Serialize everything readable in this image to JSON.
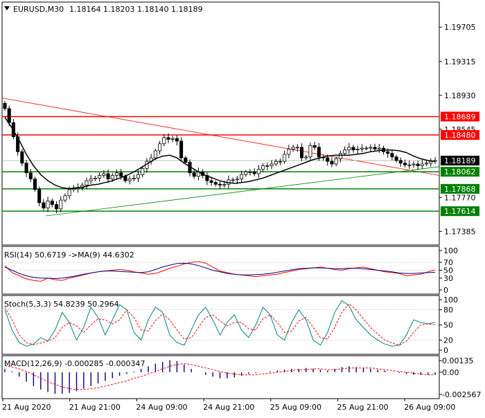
{
  "header": {
    "symbol": "EURUSD,M30",
    "ohlc": "1.18164 1.18203 1.18140 1.18189"
  },
  "colors": {
    "background": "#ffffff",
    "frame": "#000000",
    "grid": "#c8c8c8",
    "resistance": "#ff0000",
    "support": "#008000",
    "price_tag_bg": "#000000",
    "ma_line": "#000000",
    "candle": "#000000",
    "rsi_line": "#ff0000",
    "rsi_signal": "#000080",
    "stoch_main": "#008080",
    "stoch_signal": "#ff0000",
    "macd_hist": "#000080",
    "macd_signal": "#ff0000"
  },
  "chart_data": [
    {
      "type": "candlestick",
      "panel": "price",
      "title": "EURUSD,M30",
      "ylim": [
        1.1723,
        1.1999
      ],
      "y_ticks": [
        "1.19705",
        "1.19315",
        "1.18930",
        "1.18545",
        "1.17770",
        "1.17385"
      ],
      "x_ticks": [
        "21 Aug 2020",
        "21 Aug 21:00",
        "24 Aug 09:00",
        "24 Aug 21:00",
        "25 Aug 09:00",
        "25 Aug 21:00",
        "26 Aug 09:00"
      ],
      "current_price": "1.18189",
      "resistance_levels": [
        "1.18689",
        "1.18480"
      ],
      "support_levels": [
        "1.18062",
        "1.17868",
        "1.17614"
      ],
      "series": [
        {
          "name": "close",
          "values": [
            1.1878,
            1.1862,
            1.1846,
            1.1829,
            1.1816,
            1.1805,
            1.1798,
            1.1786,
            1.1771,
            1.1765,
            1.1773,
            1.1769,
            1.1764,
            1.1774,
            1.1779,
            1.1786,
            1.1787,
            1.1788,
            1.1791,
            1.1796,
            1.1798,
            1.1799,
            1.1802,
            1.1804,
            1.1798,
            1.1802,
            1.1805,
            1.1801,
            1.1796,
            1.1798,
            1.1799,
            1.1803,
            1.181,
            1.1818,
            1.1822,
            1.183,
            1.1838,
            1.1845,
            1.1843,
            1.1844,
            1.1841,
            1.1822,
            1.1817,
            1.1805,
            1.1801,
            1.1806,
            1.1802,
            1.1796,
            1.1794,
            1.1792,
            1.1791,
            1.1792,
            1.1797,
            1.1797,
            1.1798,
            1.1803,
            1.1806,
            1.1806,
            1.1804,
            1.1809,
            1.1813,
            1.1813,
            1.1815,
            1.1818,
            1.1818,
            1.1826,
            1.1832,
            1.1834,
            1.1834,
            1.1822,
            1.1823,
            1.1836,
            1.1834,
            1.1823,
            1.1822,
            1.1818,
            1.1815,
            1.1821,
            1.1827,
            1.1831,
            1.1834,
            1.1831,
            1.1832,
            1.1833,
            1.1833,
            1.1834,
            1.1832,
            1.1833,
            1.1829,
            1.1827,
            1.1823,
            1.1819,
            1.1816,
            1.1814,
            1.1814,
            1.1815,
            1.1813,
            1.1815,
            1.1816,
            1.1818,
            1.1819
          ]
        },
        {
          "name": "moving average",
          "values": [
            1.1868,
            1.1856,
            1.1842,
            1.1826,
            1.1813,
            1.1803,
            1.1796,
            1.1791,
            1.1788,
            1.1787,
            1.1788,
            1.1789,
            1.1791,
            1.1792,
            1.1794,
            1.1796,
            1.1799,
            1.1802,
            1.1806,
            1.1811,
            1.1816,
            1.1821,
            1.1824,
            1.1825,
            1.1822,
            1.1816,
            1.1811,
            1.1806,
            1.1802,
            1.1799,
            1.1796,
            1.1794,
            1.1793,
            1.1794,
            1.1795,
            1.1797,
            1.1799,
            1.1802,
            1.1805,
            1.1808,
            1.1811,
            1.1814,
            1.1817,
            1.182,
            1.1822,
            1.1824,
            1.1825,
            1.1825,
            1.1825,
            1.1826,
            1.1827,
            1.1829,
            1.183,
            1.1831,
            1.1831,
            1.183,
            1.1828,
            1.1824,
            1.1821,
            1.1819,
            1.1818
          ]
        }
      ]
    },
    {
      "type": "line",
      "panel": "rsi",
      "title": "RSI(14) 50.6719  ->MA(9) 44.6302",
      "ylim": [
        0,
        100
      ],
      "y_ticks": [
        "100",
        "70",
        "50",
        "30",
        "0"
      ],
      "series": [
        {
          "name": "RSI(14)",
          "values": [
            62,
            44,
            36,
            28,
            24,
            22,
            30,
            26,
            24,
            30,
            34,
            38,
            43,
            46,
            48,
            50,
            52,
            50,
            46,
            43,
            40,
            42,
            48,
            55,
            60,
            66,
            70,
            72,
            68,
            58,
            48,
            44,
            40,
            38,
            36,
            34,
            36,
            38,
            40,
            44,
            48,
            52,
            54,
            56,
            58,
            55,
            52,
            50,
            54,
            56,
            58,
            54,
            50,
            46,
            44,
            42,
            36,
            38,
            40,
            46,
            51
          ]
        },
        {
          "name": "MA(9)",
          "values": [
            58,
            50,
            42,
            36,
            32,
            30,
            30,
            29,
            30,
            33,
            36,
            40,
            43,
            46,
            48,
            48,
            47,
            46,
            45,
            44,
            46,
            52,
            58,
            63,
            67,
            68,
            66,
            62,
            56,
            50,
            46,
            42,
            40,
            38,
            38,
            39,
            40,
            42,
            45,
            48,
            51,
            54,
            55,
            56,
            56,
            55,
            54,
            54,
            55,
            55,
            54,
            52,
            50,
            48,
            46,
            43,
            42,
            42,
            43,
            44,
            45
          ]
        }
      ]
    },
    {
      "type": "line",
      "panel": "stochastic",
      "title": "Stoch(5,3,3) 54.8239 50.2964",
      "ylim": [
        0,
        100
      ],
      "y_ticks": [
        "100",
        "80",
        "50",
        "20",
        "0"
      ],
      "series": [
        {
          "name": "%K",
          "values": [
            80,
            40,
            15,
            8,
            12,
            25,
            18,
            40,
            75,
            55,
            20,
            45,
            85,
            65,
            30,
            60,
            90,
            80,
            35,
            20,
            60,
            85,
            75,
            30,
            15,
            10,
            40,
            70,
            85,
            60,
            30,
            55,
            70,
            40,
            25,
            50,
            85,
            70,
            30,
            20,
            55,
            80,
            60,
            20,
            10,
            35,
            75,
            98,
            88,
            60,
            45,
            30,
            20,
            12,
            8,
            10,
            30,
            60,
            55,
            52,
            55
          ]
        },
        {
          "name": "%D",
          "values": [
            85,
            60,
            30,
            15,
            11,
            14,
            18,
            25,
            45,
            55,
            48,
            35,
            50,
            62,
            60,
            52,
            60,
            80,
            65,
            40,
            38,
            58,
            72,
            60,
            40,
            22,
            25,
            45,
            65,
            70,
            58,
            48,
            55,
            55,
            42,
            40,
            62,
            70,
            55,
            35,
            38,
            58,
            65,
            45,
            25,
            22,
            45,
            75,
            92,
            80,
            62,
            45,
            32,
            20,
            14,
            10,
            18,
            35,
            50,
            52,
            50
          ]
        }
      ]
    },
    {
      "type": "histogram",
      "panel": "macd",
      "title": "MACD(12,26,9) -0.000285 -0.000347",
      "ylim": [
        -0.0029,
        0.0016
      ],
      "y_ticks": [
        "0.00135",
        "0.00",
        "-0.002567"
      ],
      "series": [
        {
          "name": "MACD",
          "values": [
            0.0004,
            0.0001,
            -0.0005,
            -0.0011,
            -0.0016,
            -0.002,
            -0.0023,
            -0.0025,
            -0.0025,
            -0.0024,
            -0.0022,
            -0.0019,
            -0.0016,
            -0.0013,
            -0.001,
            -0.0007,
            -0.0004,
            -0.0002,
            0.0001,
            0.0004,
            0.0007,
            0.001,
            0.0012,
            0.0014,
            0.0013,
            0.0009,
            0.0004,
            0.0,
            -0.0003,
            -0.0005,
            -0.0007,
            -0.0007,
            -0.0006,
            -0.0004,
            -0.0002,
            -0.0001,
            0.0,
            0.0001,
            0.0002,
            0.0003,
            0.0004,
            0.0004,
            0.0005,
            0.0004,
            0.0003,
            0.0002,
            0.0004,
            0.0006,
            0.0007,
            0.0006,
            0.0005,
            0.0004,
            0.0003,
            0.0002,
            0.0,
            -0.0001,
            -0.0002,
            -0.0003,
            -0.0003,
            -0.0003,
            -0.0003
          ]
        },
        {
          "name": "Signal",
          "values": [
            0.0008,
            0.0006,
            0.0004,
            0.0001,
            -0.0003,
            -0.0007,
            -0.0011,
            -0.0014,
            -0.0017,
            -0.0019,
            -0.002,
            -0.002,
            -0.0019,
            -0.0018,
            -0.0016,
            -0.0014,
            -0.0012,
            -0.001,
            -0.0007,
            -0.0005,
            -0.0002,
            0.0001,
            0.0004,
            0.0007,
            0.0009,
            0.001,
            0.0009,
            0.0007,
            0.0005,
            0.0003,
            0.0001,
            -0.0001,
            -0.0002,
            -0.0003,
            -0.0003,
            -0.0003,
            -0.0002,
            -0.0001,
            0.0,
            0.0001,
            0.0002,
            0.0003,
            0.0003,
            0.0004,
            0.0004,
            0.0003,
            0.0003,
            0.0004,
            0.0005,
            0.0005,
            0.0005,
            0.0005,
            0.0004,
            0.0003,
            0.0002,
            0.0001,
            0.0,
            -0.0001,
            -0.0002,
            -0.0003,
            -0.0003
          ]
        }
      ]
    }
  ]
}
